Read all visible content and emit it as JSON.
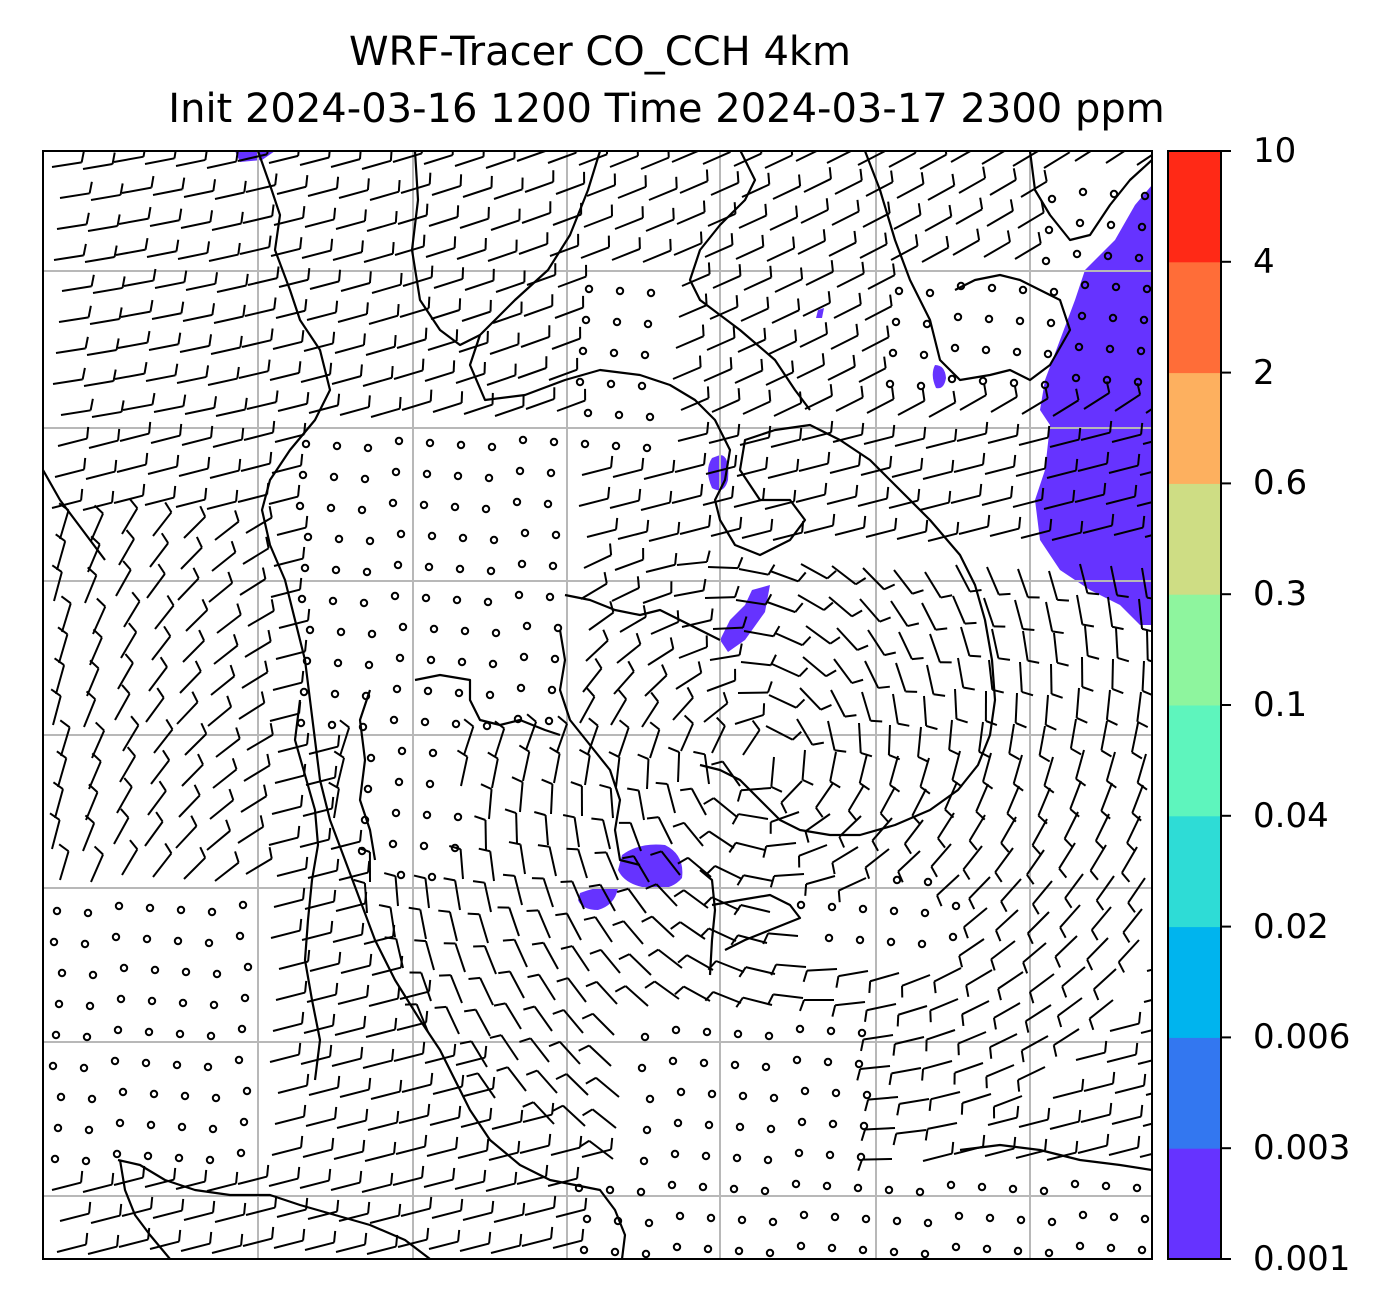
{
  "title": {
    "line1": "WRF-Tracer CO_CCH 4km",
    "line2": "Init 2024-03-16 1200 Time 2024-03-17 2300 ppm"
  },
  "colorbar": {
    "levels": [
      "0.001",
      "0.003",
      "0.006",
      "0.02",
      "0.04",
      "0.1",
      "0.3",
      "0.6",
      "2",
      "4",
      "10"
    ],
    "colors": [
      "#6633ff",
      "#3377f0",
      "#00b4ee",
      "#2edcd6",
      "#5ef5bd",
      "#8ef59e",
      "#cedd84",
      "#fdb05f",
      "#ff6d38",
      "#ff2916"
    ]
  },
  "map": {
    "tracer_color": "#6633ff",
    "coast_color": "#000000",
    "grid_color": "#b8b8b8",
    "legend": "none"
  }
}
